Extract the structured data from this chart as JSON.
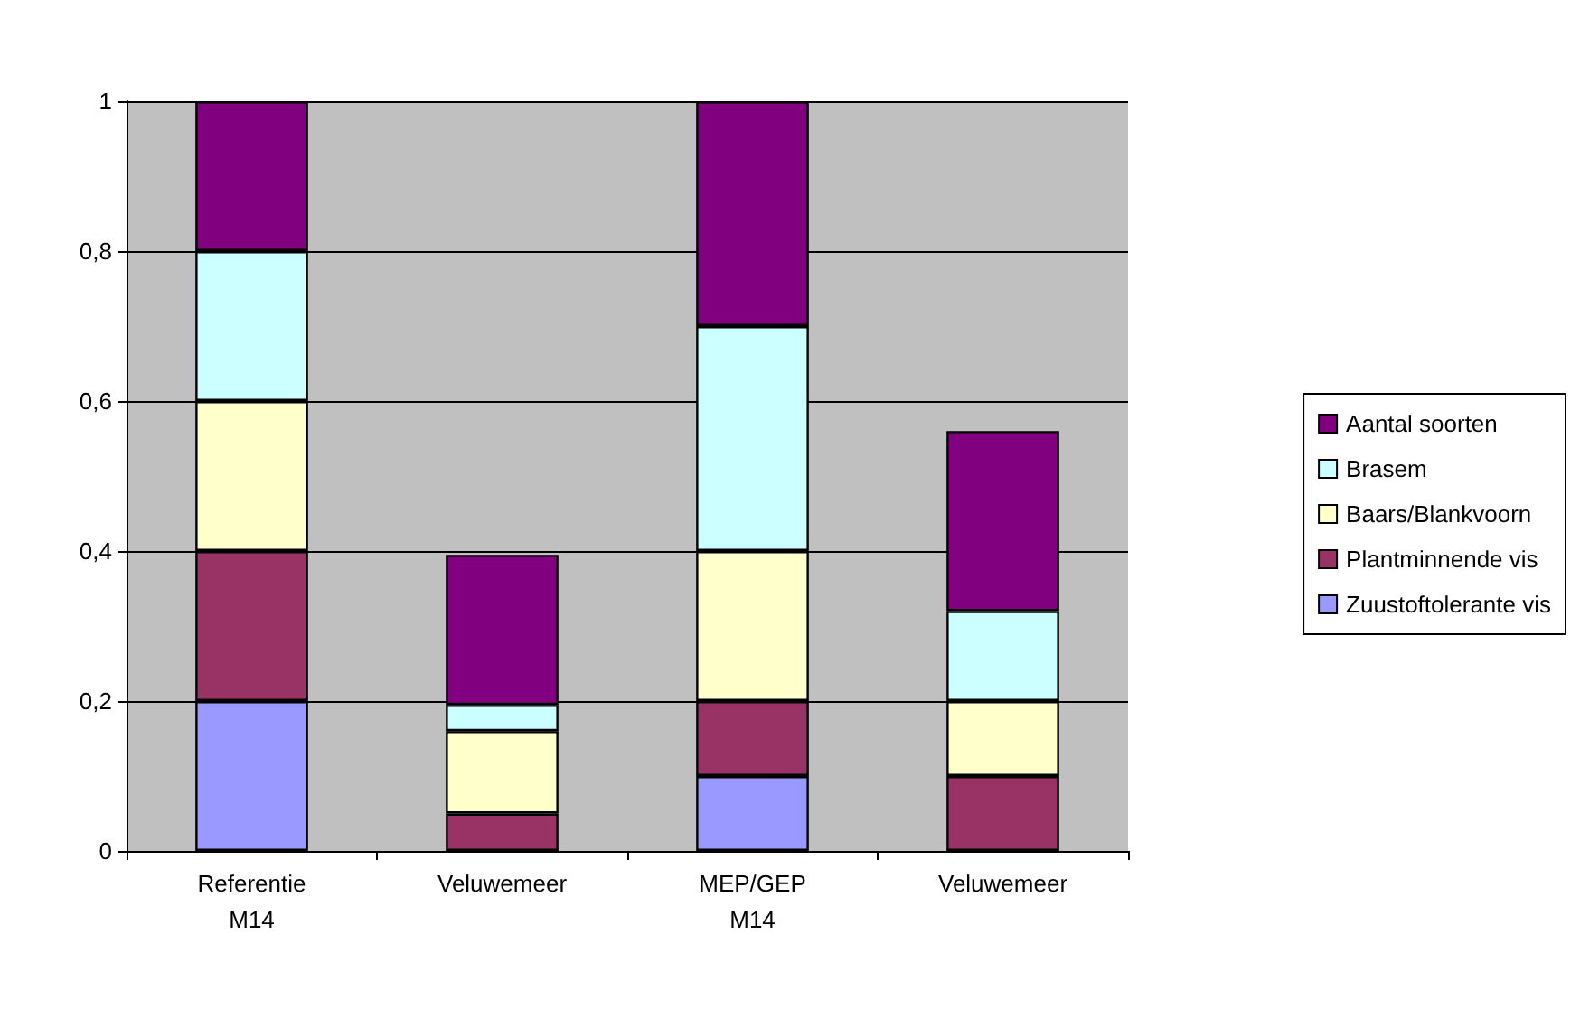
{
  "chart_data": {
    "type": "bar",
    "stacked": true,
    "categories": [
      "Referentie\nM14",
      "Veluwemeer",
      "MEP/GEP\nM14",
      "Veluwemeer"
    ],
    "series": [
      {
        "name": "Zuustoftolerante vis",
        "color": "#9999ff",
        "values": [
          0.2,
          0,
          0.1,
          0
        ]
      },
      {
        "name": "Plantminnende vis",
        "color": "#993366",
        "values": [
          0.2,
          0.05,
          0.1,
          0.1
        ]
      },
      {
        "name": "Baars/Blankvoorn",
        "color": "#ffffcc",
        "values": [
          0.2,
          0.11,
          0.2,
          0.1
        ]
      },
      {
        "name": "Brasem",
        "color": "#ccffff",
        "values": [
          0.2,
          0.035,
          0.3,
          0.12
        ]
      },
      {
        "name": "Aantal soorten",
        "color": "#800080",
        "values": [
          0.2,
          0.2,
          0.3,
          0.24
        ]
      }
    ],
    "ylim": [
      0,
      1
    ],
    "yticks": [
      0,
      {
        "value": 0.2,
        "label": "0,2"
      },
      {
        "value": 0.4,
        "label": "0,4"
      },
      {
        "value": 0.6,
        "label": "0,6"
      },
      {
        "value": 0.8,
        "label": "0,8"
      },
      1
    ],
    "grid": "y",
    "legend": "right"
  }
}
